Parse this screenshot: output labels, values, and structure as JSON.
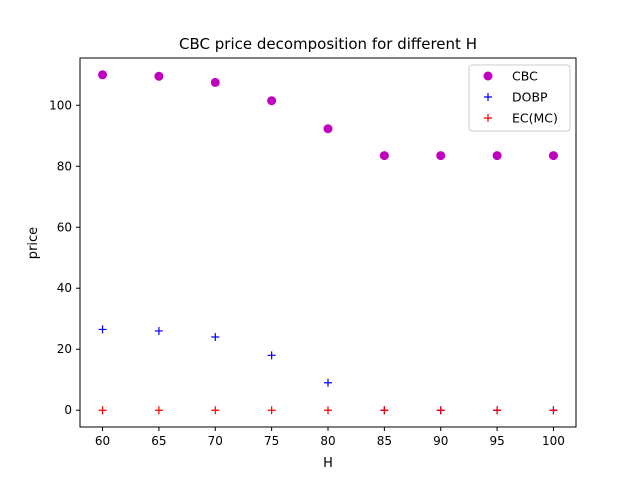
{
  "chart_data": {
    "type": "scatter",
    "title": "CBC price decomposition for different H",
    "xlabel": "H",
    "ylabel": "price",
    "x": [
      60,
      65,
      70,
      75,
      80,
      85,
      90,
      95,
      100
    ],
    "xticks": [
      "60",
      "65",
      "70",
      "75",
      "80",
      "85",
      "90",
      "95",
      "100"
    ],
    "yticks": [
      "0",
      "20",
      "40",
      "60",
      "80",
      "100"
    ],
    "xlim": [
      58,
      102
    ],
    "ylim": [
      -5.5,
      115.5
    ],
    "grid": false,
    "legend_position": "top-right",
    "series": [
      {
        "name": "CBC",
        "marker": "circle",
        "color": "#bf00bf",
        "values": [
          110,
          109.5,
          107.5,
          101.5,
          92.3,
          83.5,
          83.5,
          83.5,
          83.5
        ]
      },
      {
        "name": "DOBP",
        "marker": "plus",
        "color": "#0000ff",
        "values": [
          26.5,
          26,
          24,
          18,
          9,
          0,
          0,
          0,
          0
        ]
      },
      {
        "name": "EC(MC)",
        "marker": "plus",
        "color": "#ff0000",
        "values": [
          0,
          0,
          0,
          0,
          0,
          0,
          0,
          0,
          0
        ]
      }
    ]
  }
}
